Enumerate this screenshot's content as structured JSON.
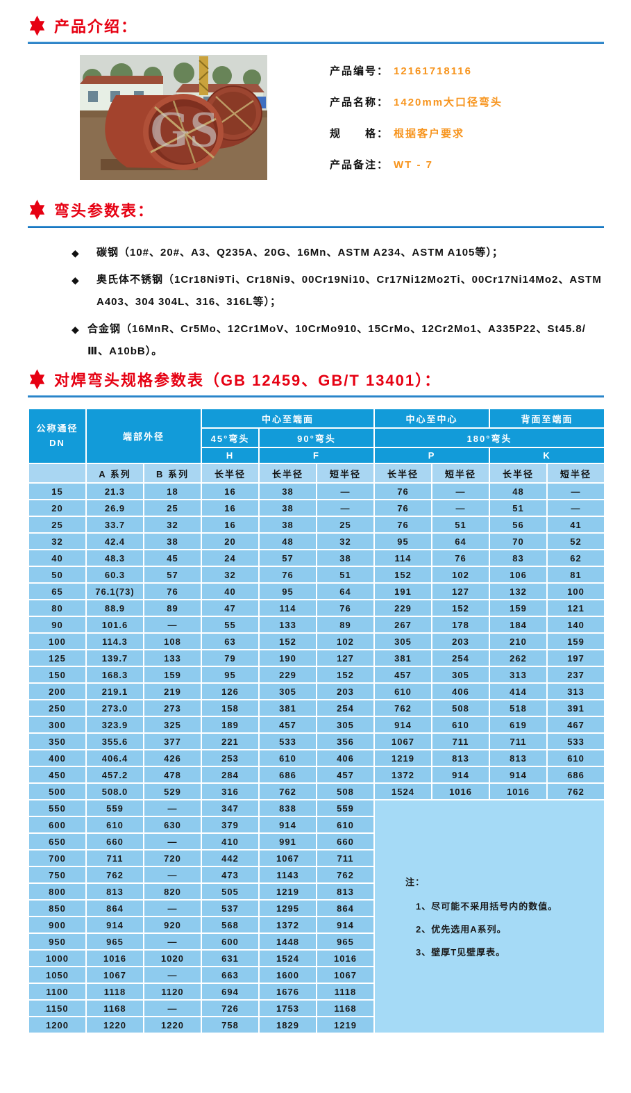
{
  "colors": {
    "accent_red": "#e60012",
    "rule_blue": "#0f6cb8",
    "header_blue": "#129bd9",
    "subheader_blue": "#a9d6f2",
    "cell_blue": "#8ecbee",
    "note_blue": "#a5daf6",
    "value_orange": "#f7941d"
  },
  "sections": {
    "intro": {
      "title": "产品介绍："
    },
    "params": {
      "title": "弯头参数表："
    },
    "spec": {
      "title": "对焊弯头规格参数表（GB 12459、GB/T 13401）："
    }
  },
  "product": {
    "photo": {
      "watermark": "GS"
    },
    "fields": [
      {
        "label": "产品编号：",
        "value": "12161718116"
      },
      {
        "label": "产品名称：",
        "value": "1420mm大口径弯头"
      },
      {
        "label": "规　　格：",
        "value": "根据客户要求"
      },
      {
        "label": "产品备注：",
        "value": "WT - 7"
      }
    ]
  },
  "materials": [
    "碳钢（10#、20#、A3、Q235A、20G、16Mn、ASTM A234、ASTM A105等）；",
    "奥氏体不锈钢（1Cr18Ni9Ti、Cr18Ni9、00Cr19Ni10、Cr17Ni12Mo2Ti、00Cr17Ni14Mo2、ASTM A403、304 304L、316、316L等）；",
    "合金钢（16MnR、Cr5Mo、12Cr1MoV、10CrMo910、15CrMo、12Cr2Mo1、A335P22、St45.8/Ⅲ、A10bB）。"
  ],
  "table": {
    "header": {
      "dn_line1": "公称通径",
      "dn_line2": "DN",
      "end_outer_diameter": "端部外径",
      "center_to_face": "中心至端面",
      "center_to_center": "中心至中心",
      "back_to_face": "背面至端面",
      "elbow_45": "45°弯头",
      "elbow_90": "90°弯头",
      "elbow_180": "180°弯头",
      "sym_h": "H",
      "sym_f": "F",
      "sym_p": "P",
      "sym_k": "K",
      "series_a": "A 系列",
      "series_b": "B 系列",
      "long_radius": "长半径",
      "short_radius": "短半径"
    },
    "rows_full": [
      [
        "15",
        "21.3",
        "18",
        "16",
        "38",
        "—",
        "76",
        "—",
        "48",
        "—"
      ],
      [
        "20",
        "26.9",
        "25",
        "16",
        "38",
        "—",
        "76",
        "—",
        "51",
        "—"
      ],
      [
        "25",
        "33.7",
        "32",
        "16",
        "38",
        "25",
        "76",
        "51",
        "56",
        "41"
      ],
      [
        "32",
        "42.4",
        "38",
        "20",
        "48",
        "32",
        "95",
        "64",
        "70",
        "52"
      ],
      [
        "40",
        "48.3",
        "45",
        "24",
        "57",
        "38",
        "114",
        "76",
        "83",
        "62"
      ],
      [
        "50",
        "60.3",
        "57",
        "32",
        "76",
        "51",
        "152",
        "102",
        "106",
        "81"
      ],
      [
        "65",
        "76.1(73)",
        "76",
        "40",
        "95",
        "64",
        "191",
        "127",
        "132",
        "100"
      ],
      [
        "80",
        "88.9",
        "89",
        "47",
        "114",
        "76",
        "229",
        "152",
        "159",
        "121"
      ],
      [
        "90",
        "101.6",
        "—",
        "55",
        "133",
        "89",
        "267",
        "178",
        "184",
        "140"
      ],
      [
        "100",
        "114.3",
        "108",
        "63",
        "152",
        "102",
        "305",
        "203",
        "210",
        "159"
      ],
      [
        "125",
        "139.7",
        "133",
        "79",
        "190",
        "127",
        "381",
        "254",
        "262",
        "197"
      ],
      [
        "150",
        "168.3",
        "159",
        "95",
        "229",
        "152",
        "457",
        "305",
        "313",
        "237"
      ],
      [
        "200",
        "219.1",
        "219",
        "126",
        "305",
        "203",
        "610",
        "406",
        "414",
        "313"
      ],
      [
        "250",
        "273.0",
        "273",
        "158",
        "381",
        "254",
        "762",
        "508",
        "518",
        "391"
      ],
      [
        "300",
        "323.9",
        "325",
        "189",
        "457",
        "305",
        "914",
        "610",
        "619",
        "467"
      ],
      [
        "350",
        "355.6",
        "377",
        "221",
        "533",
        "356",
        "1067",
        "711",
        "711",
        "533"
      ],
      [
        "400",
        "406.4",
        "426",
        "253",
        "610",
        "406",
        "1219",
        "813",
        "813",
        "610"
      ],
      [
        "450",
        "457.2",
        "478",
        "284",
        "686",
        "457",
        "1372",
        "914",
        "914",
        "686"
      ],
      [
        "500",
        "508.0",
        "529",
        "316",
        "762",
        "508",
        "1524",
        "1016",
        "1016",
        "762"
      ]
    ],
    "rows_partial": [
      [
        "550",
        "559",
        "—",
        "347",
        "838",
        "559"
      ],
      [
        "600",
        "610",
        "630",
        "379",
        "914",
        "610"
      ],
      [
        "650",
        "660",
        "—",
        "410",
        "991",
        "660"
      ],
      [
        "700",
        "711",
        "720",
        "442",
        "1067",
        "711"
      ],
      [
        "750",
        "762",
        "—",
        "473",
        "1143",
        "762"
      ],
      [
        "800",
        "813",
        "820",
        "505",
        "1219",
        "813"
      ],
      [
        "850",
        "864",
        "—",
        "537",
        "1295",
        "864"
      ],
      [
        "900",
        "914",
        "920",
        "568",
        "1372",
        "914"
      ],
      [
        "950",
        "965",
        "—",
        "600",
        "1448",
        "965"
      ],
      [
        "1000",
        "1016",
        "1020",
        "631",
        "1524",
        "1016"
      ],
      [
        "1050",
        "1067",
        "—",
        "663",
        "1600",
        "1067"
      ],
      [
        "1100",
        "1118",
        "1120",
        "694",
        "1676",
        "1118"
      ],
      [
        "1150",
        "1168",
        "—",
        "726",
        "1753",
        "1168"
      ],
      [
        "1200",
        "1220",
        "1220",
        "758",
        "1829",
        "1219"
      ]
    ],
    "note": {
      "title": "注：",
      "items": [
        "1、尽可能不采用括号内的数值。",
        "2、优先选用A系列。",
        "3、壁厚T见壁厚表。"
      ]
    }
  }
}
